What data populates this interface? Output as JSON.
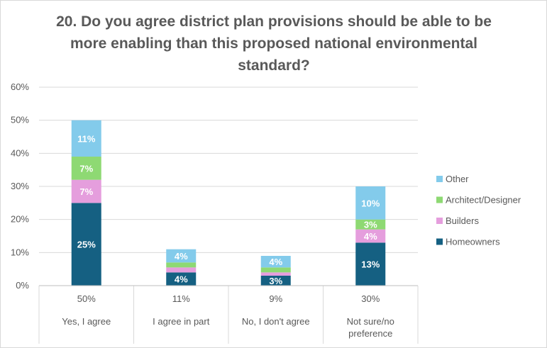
{
  "chart_data": {
    "type": "bar",
    "stacked": true,
    "title": "20. Do you agree district plan provisions should be able to be more enabling than this proposed national environmental standard?",
    "y_ticks": [
      "0%",
      "10%",
      "20%",
      "30%",
      "40%",
      "50%",
      "60%"
    ],
    "ylim": [
      0,
      60
    ],
    "grid": true,
    "legend_position": "right",
    "categories": [
      {
        "total_label": "50%",
        "label_lines": [
          "Yes, I agree"
        ]
      },
      {
        "total_label": "11%",
        "label_lines": [
          "I agree in part"
        ]
      },
      {
        "total_label": "9%",
        "label_lines": [
          "No, I don't agree"
        ]
      },
      {
        "total_label": "30%",
        "label_lines": [
          "Not sure/no",
          "preference"
        ]
      }
    ],
    "series": [
      {
        "name": "Homeowners",
        "color": "#156082",
        "values": [
          25,
          4,
          3,
          13
        ],
        "labels": [
          "25%",
          "4%",
          "3%",
          "13%"
        ]
      },
      {
        "name": "Builders",
        "color": "#e59edd",
        "values": [
          7,
          1.5,
          1,
          4
        ],
        "labels": [
          "7%",
          "",
          "",
          "4%"
        ]
      },
      {
        "name": "Architect/Designer",
        "color": "#8ed973",
        "values": [
          7,
          1.5,
          1.5,
          3
        ],
        "labels": [
          "7%",
          "",
          "",
          "3%"
        ]
      },
      {
        "name": "Other",
        "color": "#83cbeb",
        "values": [
          11,
          4,
          3.5,
          10
        ],
        "labels": [
          "11%",
          "4%",
          "4%",
          "10%"
        ]
      }
    ]
  }
}
